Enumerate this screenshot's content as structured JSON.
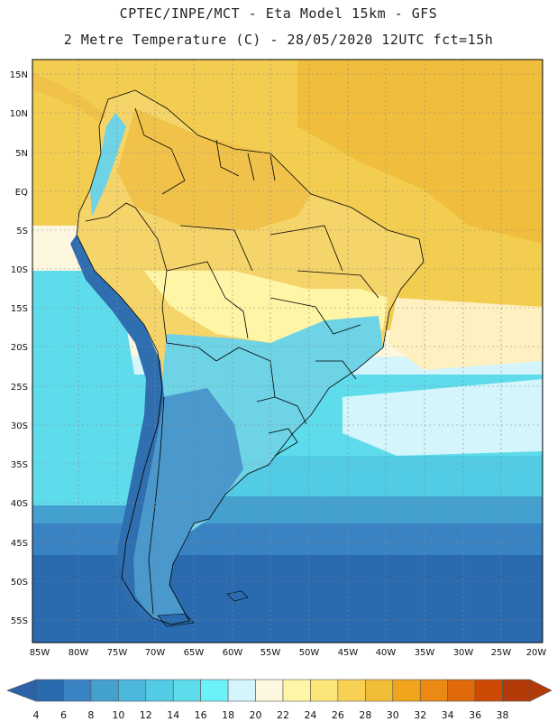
{
  "header": {
    "line1": "CPTEC/INPE/MCT  -   Eta Model 15km  -  GFS",
    "line2": "2 Metre Temperature (C) - 28/05/2020 12UTC fct=15h"
  },
  "axes": {
    "lat_labels": [
      "15N",
      "10N",
      "5N",
      "EQ",
      "5S",
      "10S",
      "15S",
      "20S",
      "25S",
      "30S",
      "35S",
      "40S",
      "45S",
      "50S",
      "55S"
    ],
    "lon_labels": [
      "85W",
      "80W",
      "75W",
      "70W",
      "65W",
      "60W",
      "55W",
      "50W",
      "45W",
      "40W",
      "35W",
      "30W",
      "25W",
      "20W"
    ]
  },
  "colorbar": {
    "ticks": [
      "4",
      "6",
      "8",
      "10",
      "12",
      "14",
      "16",
      "18",
      "20",
      "22",
      "24",
      "26",
      "28",
      "30",
      "32",
      "34",
      "36",
      "38"
    ],
    "colors": [
      "#2a6aae",
      "#3a83c2",
      "#44a0cf",
      "#4bb8dc",
      "#52cbe4",
      "#5fdcec",
      "#6af2f8",
      "#d3f5fb",
      "#fef7e0",
      "#fef5a7",
      "#fde679",
      "#f7d054",
      "#f2bd36",
      "#f0a51c",
      "#ea8a14",
      "#e06a0a",
      "#cd4a05",
      "#b23b08"
    ],
    "left_arrow_color": "#2e62a8",
    "right_arrow_color": "#b23b08"
  },
  "map_colors": {
    "ocean_far_south": "#2a6aae",
    "ocean_cold": "#3a83c2",
    "ocean_cool": "#44a0cf",
    "ocean_mild": "#52cbe4",
    "ocean_cyan": "#5fdcec",
    "ocean_light": "#d3f5fb",
    "ocean_cream": "#fef7e0",
    "ocean_warm": "#f2cd50",
    "ocean_hot": "#f0be3c",
    "land_hot": "#f0c24a",
    "land_warm": "#f5d46a",
    "land_pale": "#fef5a7",
    "land_cool": "#6fd3e6",
    "land_cold": "#4a98cc",
    "andes": "#2f6fb0",
    "border": "#000000",
    "grid": "#888888"
  }
}
